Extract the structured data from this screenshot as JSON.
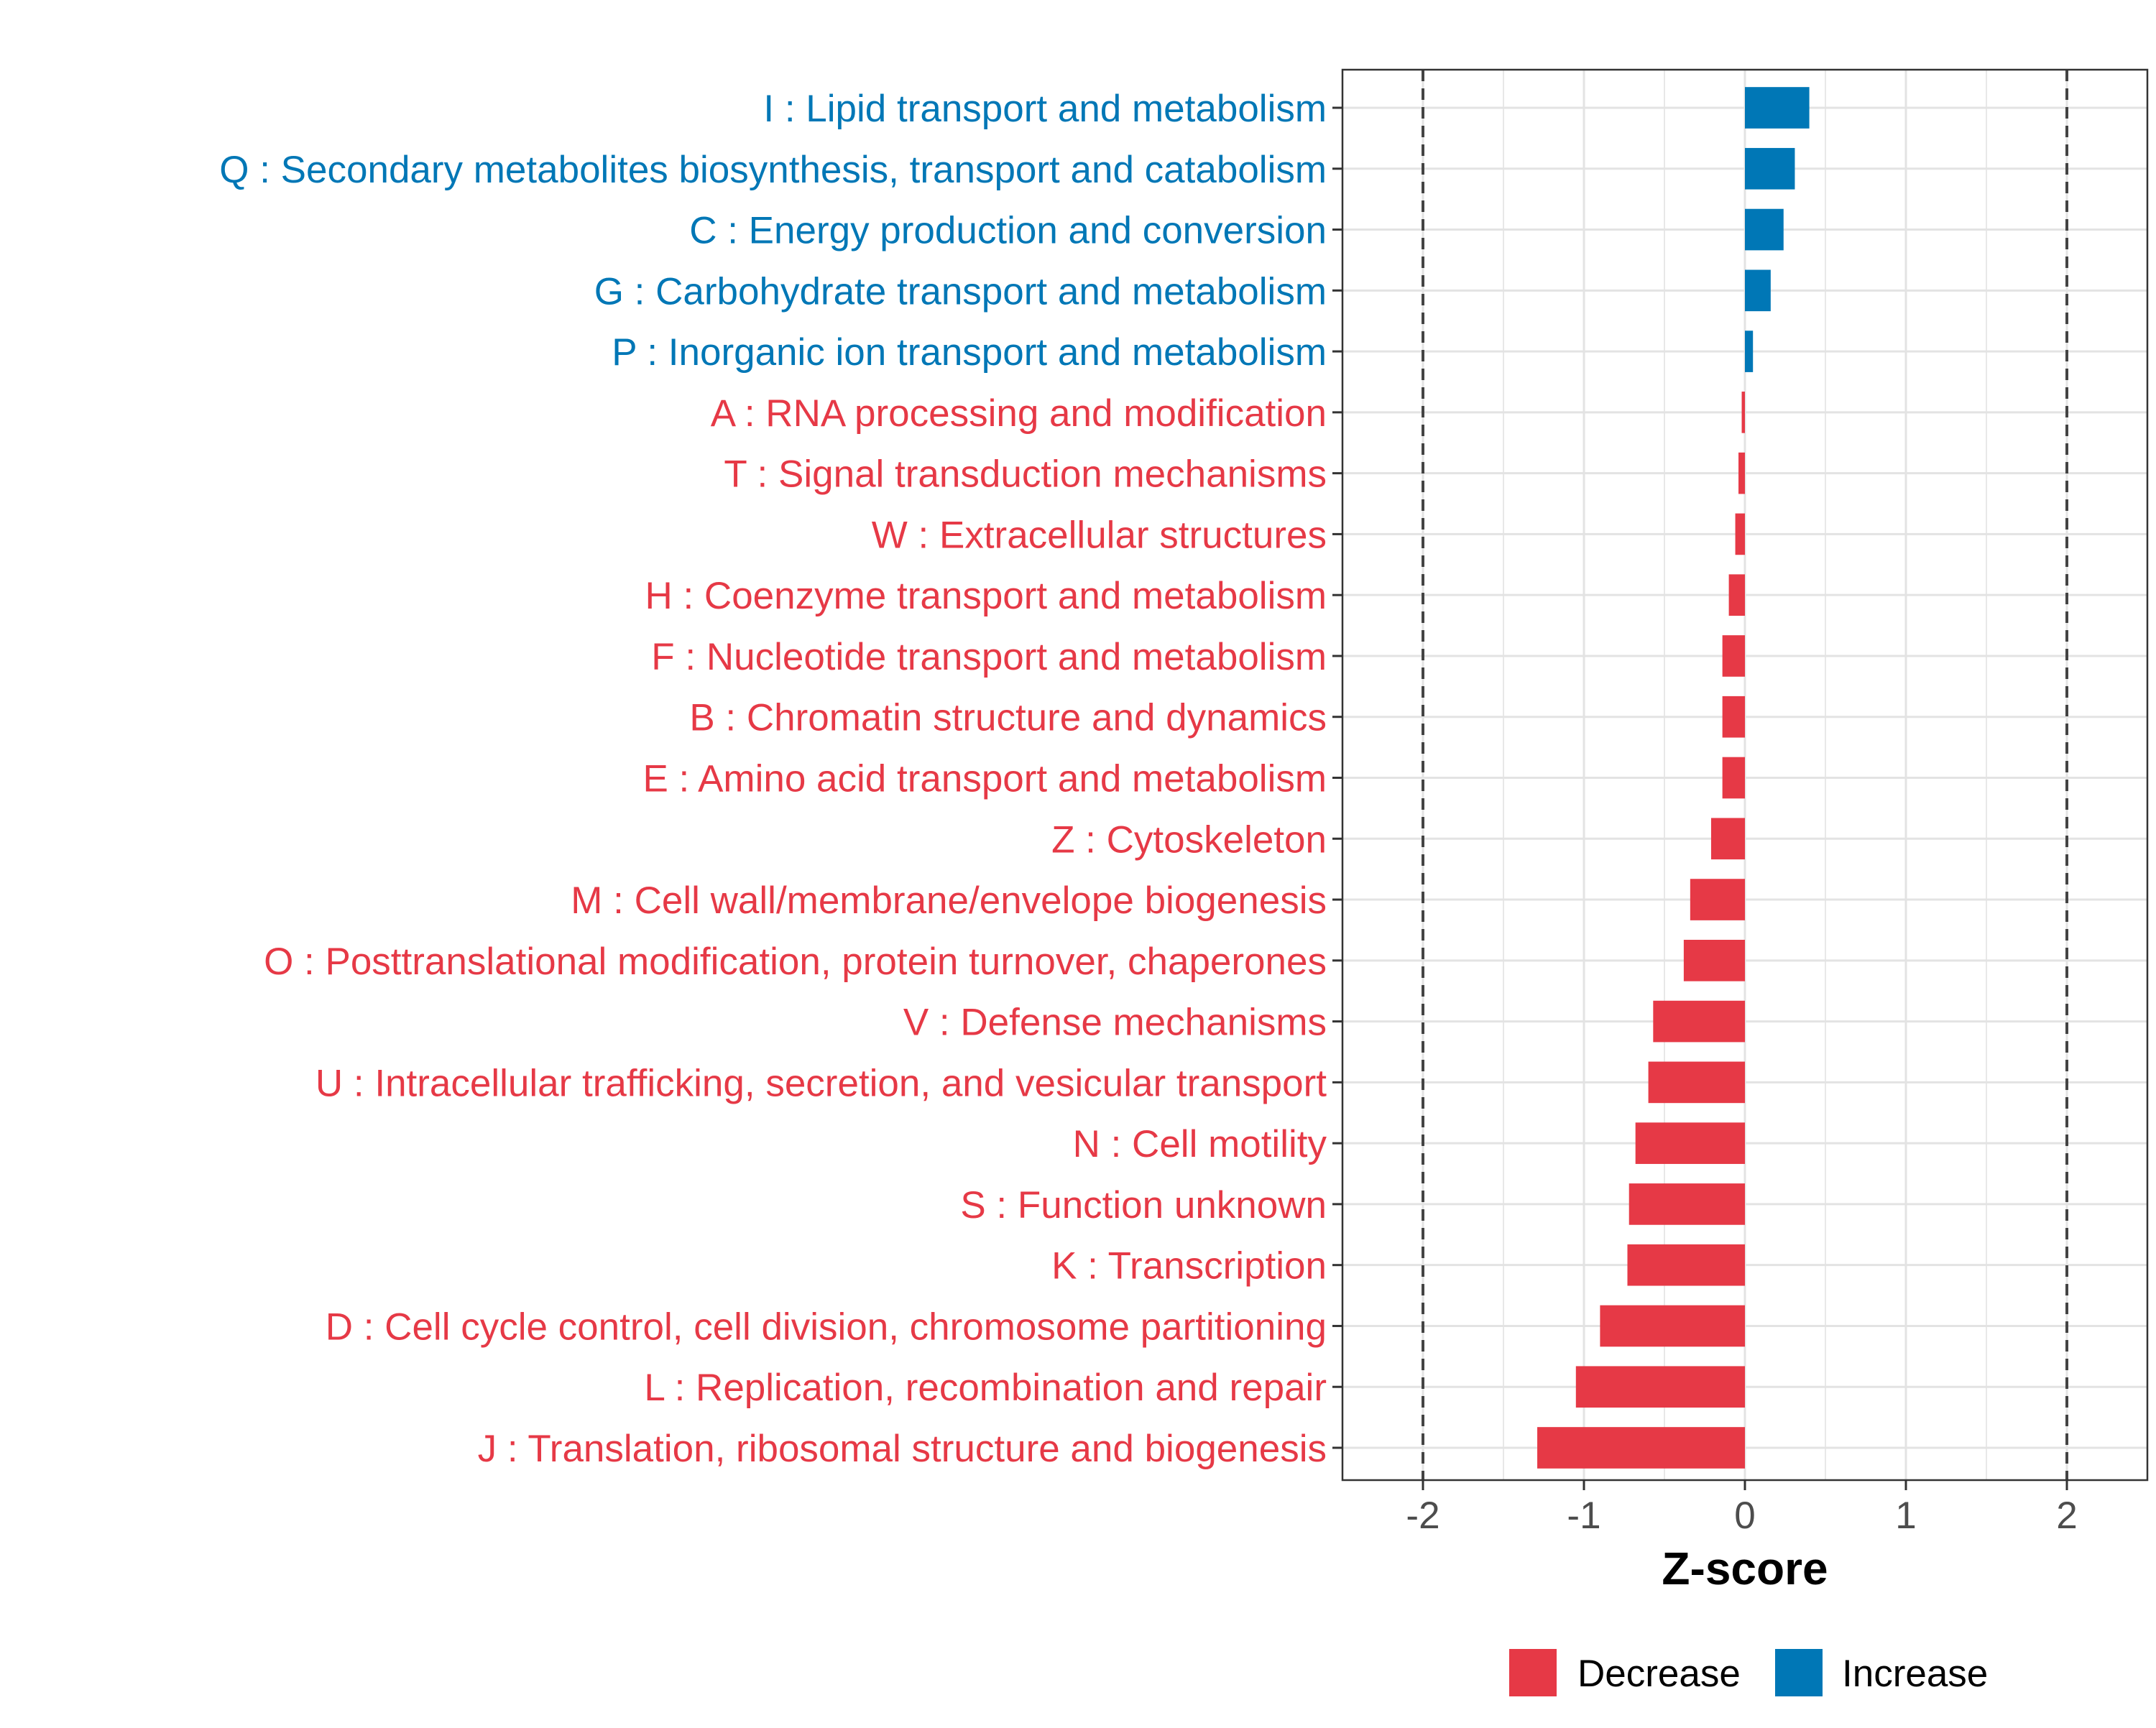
{
  "chart_data": {
    "type": "bar",
    "orientation": "horizontal",
    "xlabel": "Z-score",
    "ylabel": "",
    "xlim": [
      -2.5,
      2.5
    ],
    "xticks": [
      -2,
      -1,
      0,
      1,
      2
    ],
    "xtick_labels": [
      "-2",
      "-1",
      "0",
      "1",
      "2"
    ],
    "reference_lines": [
      -2,
      2
    ],
    "grid": true,
    "categories": [
      "I : Lipid transport and metabolism",
      "Q : Secondary metabolites biosynthesis, transport and catabolism",
      "C : Energy production and conversion",
      "G : Carbohydrate transport and metabolism",
      "P : Inorganic ion transport and metabolism",
      "A : RNA processing and modification",
      "T : Signal transduction mechanisms",
      "W : Extracellular structures",
      "H : Coenzyme transport and metabolism",
      "F : Nucleotide transport and metabolism",
      "B : Chromatin structure and dynamics",
      "E : Amino acid transport and metabolism",
      "Z : Cytoskeleton",
      "M : Cell wall/membrane/envelope biogenesis",
      "O : Posttranslational modification, protein turnover, chaperones",
      "V : Defense mechanisms",
      "U : Intracellular trafficking, secretion, and vesicular transport",
      "N : Cell motility",
      "S : Function unknown",
      "K : Transcription",
      "D : Cell cycle control, cell division, chromosome partitioning",
      "L : Replication, recombination and repair",
      "J : Translation, ribosomal structure and biogenesis"
    ],
    "values": [
      0.4,
      0.31,
      0.24,
      0.16,
      0.05,
      -0.02,
      -0.04,
      -0.06,
      -0.1,
      -0.14,
      -0.14,
      -0.14,
      -0.21,
      -0.34,
      -0.38,
      -0.57,
      -0.6,
      -0.68,
      -0.72,
      -0.73,
      -0.9,
      -1.05,
      -1.29
    ],
    "groups": [
      "Increase",
      "Increase",
      "Increase",
      "Increase",
      "Increase",
      "Decrease",
      "Decrease",
      "Decrease",
      "Decrease",
      "Decrease",
      "Decrease",
      "Decrease",
      "Decrease",
      "Decrease",
      "Decrease",
      "Decrease",
      "Decrease",
      "Decrease",
      "Decrease",
      "Decrease",
      "Decrease",
      "Decrease",
      "Decrease"
    ],
    "legend": {
      "position": "bottom",
      "entries": [
        {
          "label": "Decrease",
          "color": "#E63946"
        },
        {
          "label": "Increase",
          "color": "#0077B6"
        }
      ]
    },
    "colors": {
      "Decrease": "#E63946",
      "Increase": "#0077B6"
    }
  }
}
